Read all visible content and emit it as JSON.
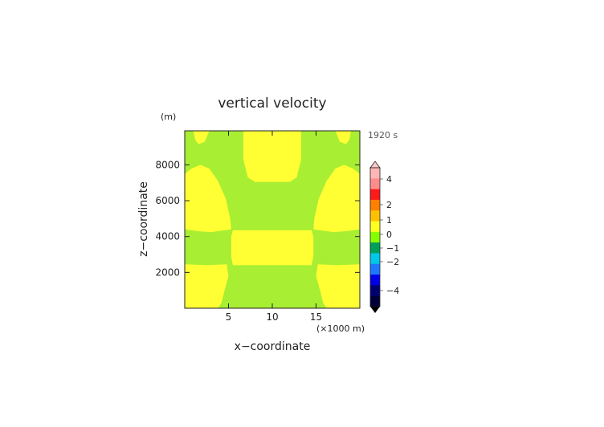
{
  "chart_data": {
    "type": "heatmap",
    "title": "vertical velocity",
    "xlabel": "x−coordinate",
    "ylabel": "z−coordinate",
    "y_unit": "(m)",
    "x_unit": "(×1000 m)",
    "time_label": "1920 s",
    "xlim": [
      0,
      20
    ],
    "ylim": [
      0,
      9900
    ],
    "x_ticks": [
      {
        "value": 5,
        "label": "5"
      },
      {
        "value": 10,
        "label": "10"
      },
      {
        "value": 15,
        "label": "15"
      }
    ],
    "y_ticks": [
      {
        "value": 2000,
        "label": "2000"
      },
      {
        "value": 4000,
        "label": "4000"
      },
      {
        "value": 6000,
        "label": "6000"
      },
      {
        "value": 8000,
        "label": "8000"
      }
    ],
    "field_levels": {
      "background": "0 to 0.5 (yellow-green)",
      "positive_regions": "0.5 to 1 (yellow)"
    },
    "regions": [
      {
        "name": "upper-center",
        "level": "yellow",
        "points": [
          [
            6.7,
            9900
          ],
          [
            13.3,
            9900
          ],
          [
            13.3,
            8300
          ],
          [
            12.8,
            7300
          ],
          [
            12.0,
            7050
          ],
          [
            8.0,
            7050
          ],
          [
            7.2,
            7300
          ],
          [
            6.7,
            8300
          ]
        ]
      },
      {
        "name": "left-lobe",
        "level": "yellow",
        "points": [
          [
            0,
            7500
          ],
          [
            0.8,
            7800
          ],
          [
            1.8,
            8000
          ],
          [
            2.8,
            7800
          ],
          [
            3.8,
            7100
          ],
          [
            4.7,
            6100
          ],
          [
            5.2,
            5000
          ],
          [
            5.3,
            4400
          ],
          [
            4.6,
            4350
          ],
          [
            3.0,
            4250
          ],
          [
            1.5,
            4300
          ],
          [
            0,
            4400
          ]
        ]
      },
      {
        "name": "right-lobe",
        "level": "yellow",
        "points": [
          [
            20,
            7500
          ],
          [
            19.2,
            7800
          ],
          [
            18.2,
            8000
          ],
          [
            17.2,
            7800
          ],
          [
            16.2,
            7100
          ],
          [
            15.3,
            6100
          ],
          [
            14.8,
            5000
          ],
          [
            14.7,
            4400
          ],
          [
            15.4,
            4350
          ],
          [
            17.0,
            4250
          ],
          [
            18.5,
            4300
          ],
          [
            20,
            4400
          ]
        ]
      },
      {
        "name": "center-band",
        "level": "yellow",
        "points": [
          [
            5.5,
            4350
          ],
          [
            14.5,
            4350
          ],
          [
            14.7,
            4000
          ],
          [
            14.7,
            2900
          ],
          [
            14.5,
            2400
          ],
          [
            5.5,
            2400
          ],
          [
            5.3,
            2900
          ],
          [
            5.3,
            4000
          ]
        ]
      },
      {
        "name": "left-bottom",
        "level": "yellow",
        "points": [
          [
            0,
            2450
          ],
          [
            2.5,
            2400
          ],
          [
            4.8,
            2450
          ],
          [
            5.0,
            1800
          ],
          [
            4.5,
            900
          ],
          [
            4.2,
            300
          ],
          [
            3.8,
            0
          ],
          [
            0,
            0
          ]
        ]
      },
      {
        "name": "right-bottom",
        "level": "yellow",
        "points": [
          [
            20,
            2450
          ],
          [
            17.5,
            2400
          ],
          [
            15.2,
            2450
          ],
          [
            15.0,
            1800
          ],
          [
            15.5,
            900
          ],
          [
            15.8,
            300
          ],
          [
            16.2,
            0
          ],
          [
            20,
            0
          ]
        ]
      },
      {
        "name": "top-left-blob",
        "level": "yellow",
        "points": [
          [
            1.0,
            9900
          ],
          [
            2.8,
            9900
          ],
          [
            2.3,
            9300
          ],
          [
            1.6,
            9150
          ],
          [
            1.2,
            9400
          ]
        ]
      },
      {
        "name": "top-right-blob",
        "level": "yellow",
        "points": [
          [
            19.0,
            9900
          ],
          [
            17.2,
            9900
          ],
          [
            17.7,
            9300
          ],
          [
            18.4,
            9150
          ],
          [
            18.8,
            9400
          ]
        ]
      }
    ],
    "colorbar": {
      "labels": [
        "4",
        "2",
        "1",
        "0",
        "−1",
        "−2",
        "−4"
      ],
      "colors": [
        "#ffb6b6",
        "#ff8c8c",
        "#ff1a1a",
        "#ff7f00",
        "#ffc000",
        "#ffff22",
        "#88ff00",
        "#00a05a",
        "#00c8e6",
        "#1e78ff",
        "#0000e6",
        "#000070",
        "#000038"
      ],
      "arrow_top_color": "#ffc8c8",
      "arrow_bottom_color": "#000000"
    },
    "colors": {
      "background_field": "#a8ee33",
      "positive_field": "#ffff33"
    }
  }
}
